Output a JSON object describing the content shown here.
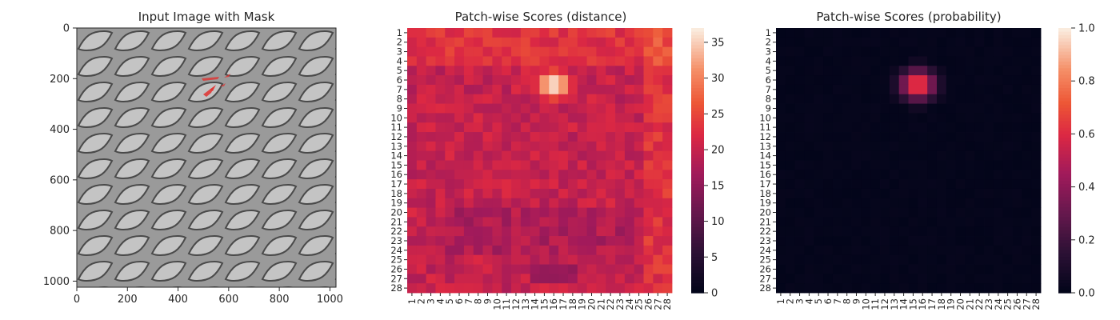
{
  "chart_data": [
    {
      "type": "image",
      "title": "Input Image with Mask",
      "xlim": [
        0,
        1024
      ],
      "ylim": [
        1024,
        0
      ],
      "x_ticks": [
        0,
        200,
        400,
        600,
        800,
        1000
      ],
      "y_ticks": [
        0,
        200,
        400,
        600,
        800,
        1000
      ],
      "image_description": "grey woven mesh texture with diagonal diamond openings",
      "mask_color": "#e0312f",
      "mask_location": [
        540,
        230
      ]
    },
    {
      "type": "heatmap",
      "title": "Patch-wise Scores (distance)",
      "rows": 28,
      "cols": 28,
      "row_labels": [
        "1",
        "2",
        "3",
        "4",
        "5",
        "6",
        "7",
        "8",
        "9",
        "10",
        "11",
        "12",
        "13",
        "14",
        "15",
        "16",
        "17",
        "18",
        "19",
        "20",
        "21",
        "22",
        "23",
        "24",
        "25",
        "26",
        "27",
        "28"
      ],
      "col_labels": [
        "1",
        "2",
        "3",
        "4",
        "5",
        "6",
        "7",
        "8",
        "9",
        "10",
        "11",
        "12",
        "13",
        "14",
        "15",
        "16",
        "17",
        "18",
        "19",
        "20",
        "21",
        "22",
        "23",
        "24",
        "25",
        "26",
        "27",
        "28"
      ],
      "colorbar_range": [
        0,
        37
      ],
      "colorbar_ticks": [
        0,
        5,
        10,
        15,
        20,
        25,
        30,
        35
      ],
      "colormap": "rocket",
      "base_value": 20,
      "hotspot": {
        "row_center": 6.5,
        "col_center": 16,
        "peak": 37
      },
      "low_band": {
        "rows": [
          26,
          27
        ],
        "cols": [
          14,
          18
        ],
        "value": 15
      }
    },
    {
      "type": "heatmap",
      "title": "Patch-wise Scores (probability)",
      "rows": 28,
      "cols": 28,
      "row_labels": [
        "1",
        "2",
        "3",
        "4",
        "5",
        "6",
        "7",
        "8",
        "9",
        "10",
        "11",
        "12",
        "13",
        "14",
        "15",
        "16",
        "17",
        "18",
        "19",
        "20",
        "21",
        "22",
        "23",
        "24",
        "25",
        "26",
        "27",
        "28"
      ],
      "col_labels": [
        "1",
        "2",
        "3",
        "4",
        "5",
        "6",
        "7",
        "8",
        "9",
        "10",
        "11",
        "12",
        "13",
        "14",
        "15",
        "16",
        "17",
        "18",
        "19",
        "20",
        "21",
        "22",
        "23",
        "24",
        "25",
        "26",
        "27",
        "28"
      ],
      "colorbar_range": [
        0.0,
        1.0
      ],
      "colorbar_ticks": [
        "0.0",
        "0.2",
        "0.4",
        "0.6",
        "0.8",
        "1.0"
      ],
      "colormap": "rocket",
      "base_value": 0.0,
      "hotspot": {
        "row_center": 6.5,
        "col_center": 15.5,
        "peak": 0.72
      }
    }
  ]
}
